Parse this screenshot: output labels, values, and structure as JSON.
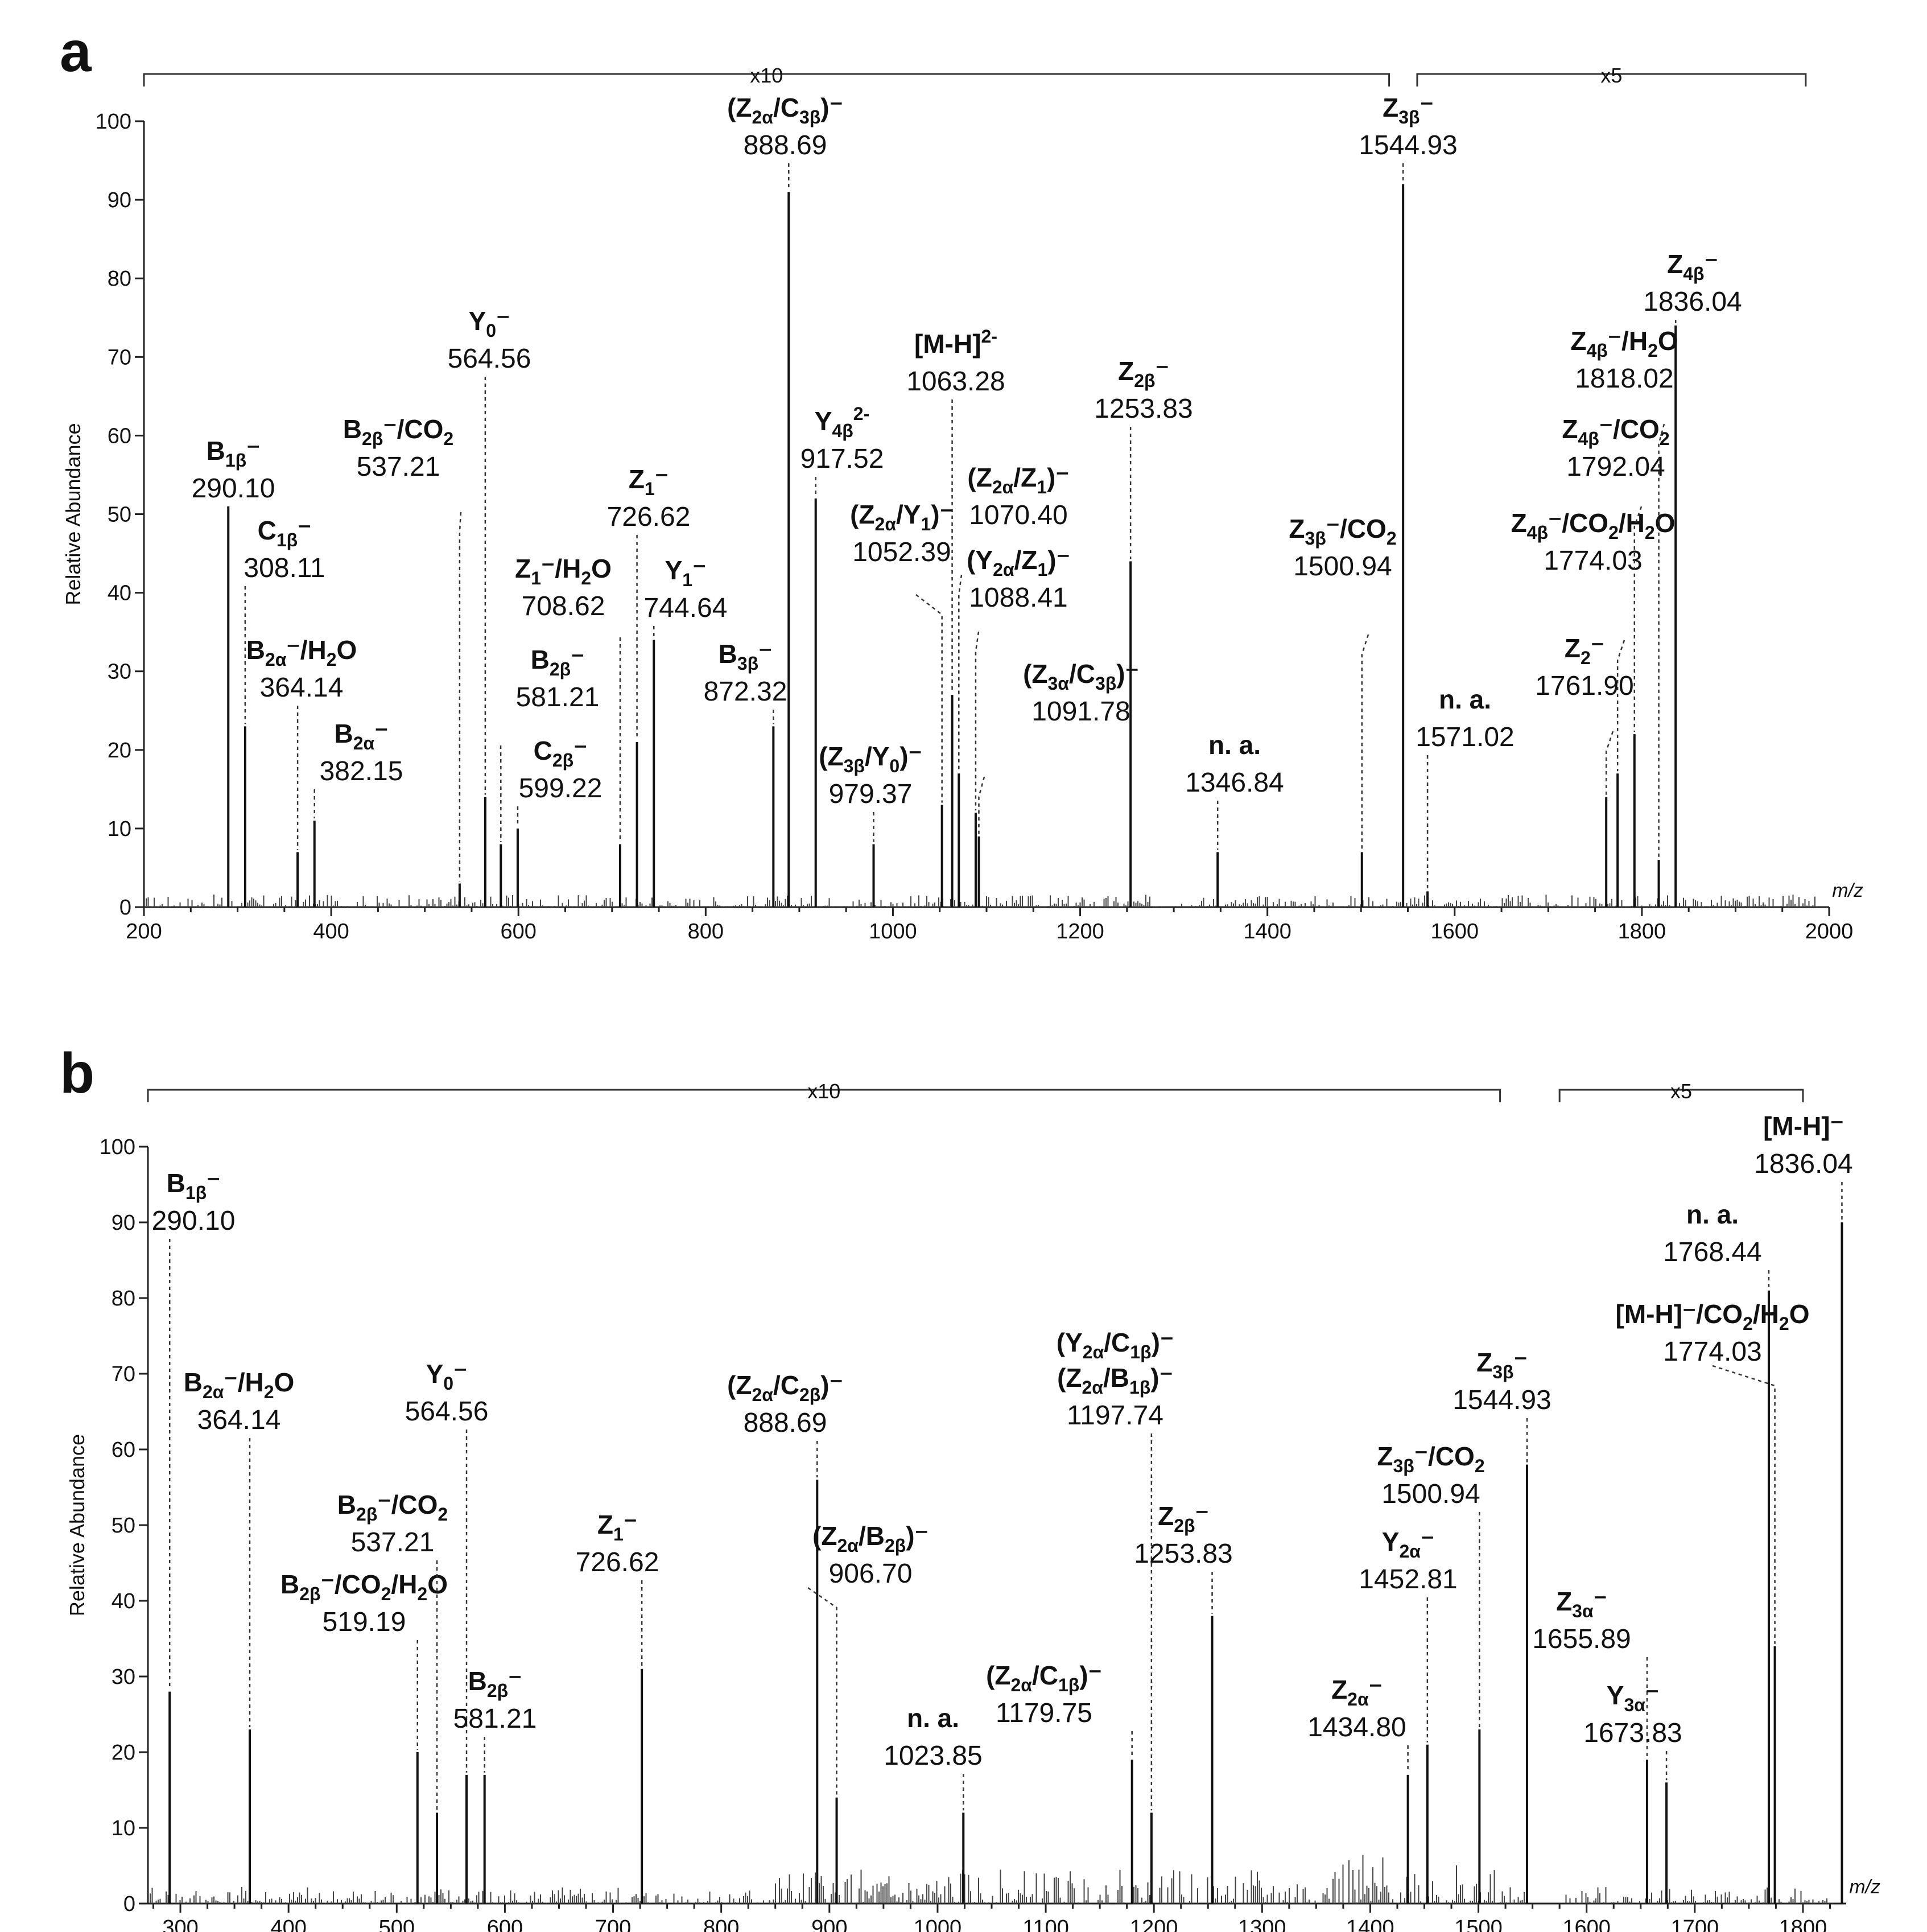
{
  "chart_data": [
    {
      "type": "bar",
      "panel": "a",
      "xlabel": "m/z",
      "ylabel": "Relative Abundance",
      "xlim": [
        200,
        2000
      ],
      "ylim": [
        0,
        100
      ],
      "xticks": [
        200,
        400,
        600,
        800,
        1000,
        1200,
        1400,
        1600,
        1800,
        2000
      ],
      "yticks": [
        0,
        10,
        20,
        30,
        40,
        50,
        60,
        70,
        80,
        90,
        100
      ],
      "zoom_regions": [
        {
          "label": "x10",
          "from": 200,
          "to": 1530
        },
        {
          "label": "x5",
          "from": 1560,
          "to": 1975
        }
      ],
      "peaks": [
        {
          "mz": 290.1,
          "value": 51,
          "name": "B1β⁻",
          "mzlabel": "290.10",
          "ion": [
            "B",
            "1β",
            "⁻"
          ]
        },
        {
          "mz": 308.11,
          "value": 23,
          "name": "C1β⁻",
          "mzlabel": "308.11",
          "ion": [
            "C",
            "1β",
            "⁻"
          ]
        },
        {
          "mz": 364.14,
          "value": 7,
          "name": "B2α⁻/H2O",
          "mzlabel": "364.14",
          "ion": [
            "B",
            "2α",
            "⁻/H",
            "2",
            "O"
          ]
        },
        {
          "mz": 382.15,
          "value": 11,
          "name": "B2α⁻",
          "mzlabel": "382.15",
          "ion": [
            "B",
            "2α",
            "⁻"
          ]
        },
        {
          "mz": 537.21,
          "value": 3,
          "name": "B2β⁻/CO2",
          "mzlabel": "537.21",
          "ion": [
            "B",
            "2β",
            "⁻/CO",
            "2"
          ]
        },
        {
          "mz": 564.56,
          "value": 14,
          "name": "Y0⁻",
          "mzlabel": "564.56",
          "ion": [
            "Y",
            "0",
            "⁻"
          ]
        },
        {
          "mz": 581.21,
          "value": 8,
          "name": "B2β⁻",
          "mzlabel": "581.21",
          "ion": [
            "B",
            "2β",
            "⁻"
          ]
        },
        {
          "mz": 599.22,
          "value": 10,
          "name": "C2β⁻",
          "mzlabel": "599.22",
          "ion": [
            "C",
            "2β",
            "⁻"
          ]
        },
        {
          "mz": 708.62,
          "value": 8,
          "name": "Z1⁻/H2O",
          "mzlabel": "708.62",
          "ion": [
            "Z",
            "1",
            "⁻/H",
            "2",
            "O"
          ]
        },
        {
          "mz": 726.62,
          "value": 21,
          "name": "Z1⁻",
          "mzlabel": "726.62",
          "ion": [
            "Z",
            "1",
            "⁻"
          ]
        },
        {
          "mz": 744.64,
          "value": 34,
          "name": "Y1⁻",
          "mzlabel": "744.64",
          "ion": [
            "Y",
            "1",
            "⁻"
          ]
        },
        {
          "mz": 872.32,
          "value": 23,
          "name": "B3β⁻",
          "mzlabel": "872.32",
          "ion": [
            "B",
            "3β",
            "⁻"
          ]
        },
        {
          "mz": 888.69,
          "value": 91,
          "name": "(Z2α/C3β)⁻",
          "mzlabel": "888.69",
          "ion": [
            "(Z",
            "2α",
            "/C",
            "3β",
            ")⁻"
          ]
        },
        {
          "mz": 917.52,
          "value": 52,
          "name": "Y4β2-",
          "mzlabel": "917.52",
          "ion": [
            "Y",
            "4β",
            "2-"
          ]
        },
        {
          "mz": 979.37,
          "value": 8,
          "name": "(Z3β/Y0)⁻",
          "mzlabel": "979.37",
          "ion": [
            "(Z",
            "3β",
            "/Y",
            "0",
            ")⁻"
          ]
        },
        {
          "mz": 1052.39,
          "value": 13,
          "name": "(Z2α/Y1)⁻",
          "mzlabel": "1052.39",
          "ion": [
            "(Z",
            "2α",
            "/Y",
            "1",
            ")⁻"
          ]
        },
        {
          "mz": 1063.28,
          "value": 27,
          "name": "[M-H]2-",
          "mzlabel": "1063.28",
          "ion": [
            "[M-H]",
            "",
            "2-"
          ]
        },
        {
          "mz": 1070.4,
          "value": 17,
          "name": "(Z2α/Z1)⁻",
          "mzlabel": "1070.40",
          "ion": [
            "(Z",
            "2α",
            "/Z",
            "1",
            ")⁻"
          ]
        },
        {
          "mz": 1088.41,
          "value": 12,
          "name": "(Y2α/Z1)⁻",
          "mzlabel": "1088.41",
          "ion": [
            "(Y",
            "2α",
            "/Z",
            "1",
            ")⁻"
          ]
        },
        {
          "mz": 1091.78,
          "value": 9,
          "name": "(Z3α/C3β)⁻",
          "mzlabel": "1091.78",
          "ion": [
            "(Z",
            "3α",
            "/C",
            "3β",
            ")⁻"
          ]
        },
        {
          "mz": 1253.83,
          "value": 44,
          "name": "Z2β⁻",
          "mzlabel": "1253.83",
          "ion": [
            "Z",
            "2β",
            "⁻"
          ]
        },
        {
          "mz": 1346.84,
          "value": 7,
          "name": "n. a.",
          "mzlabel": "1346.84",
          "ion": [
            "n. a."
          ]
        },
        {
          "mz": 1500.94,
          "value": 7,
          "name": "Z3β⁻/CO2",
          "mzlabel": "1500.94",
          "ion": [
            "Z",
            "3β",
            "⁻/CO",
            "2"
          ]
        },
        {
          "mz": 1544.93,
          "value": 92,
          "name": "Z3β⁻",
          "mzlabel": "1544.93",
          "ion": [
            "Z",
            "3β",
            "⁻"
          ]
        },
        {
          "mz": 1571.02,
          "value": 2,
          "name": "n. a.",
          "mzlabel": "1571.02",
          "ion": [
            "n. a."
          ]
        },
        {
          "mz": 1761.9,
          "value": 14,
          "name": "Z2⁻",
          "mzlabel": "1761.90",
          "ion": [
            "Z",
            "2",
            "⁻"
          ]
        },
        {
          "mz": 1774.03,
          "value": 17,
          "name": "Z4β⁻/CO2/H2O",
          "mzlabel": "1774.03",
          "ion": [
            "Z",
            "4β",
            "⁻/CO",
            "2",
            "/H",
            "2",
            "O"
          ]
        },
        {
          "mz": 1792.04,
          "value": 22,
          "name": "Z4β⁻/CO2",
          "mzlabel": "1792.04",
          "ion": [
            "Z",
            "4β",
            "⁻/CO",
            "2"
          ]
        },
        {
          "mz": 1818.02,
          "value": 6,
          "name": "Z4β⁻/H2O",
          "mzlabel": "1818.02",
          "ion": [
            "Z",
            "4β",
            "⁻/H",
            "2",
            "O"
          ]
        },
        {
          "mz": 1836.04,
          "value": 74,
          "name": "Z4β⁻",
          "mzlabel": "1836.04",
          "ion": [
            "Z",
            "4β",
            "⁻"
          ]
        }
      ]
    },
    {
      "type": "bar",
      "panel": "b",
      "xlabel": "m/z",
      "ylabel": "Relative Abundance",
      "xlim": [
        270,
        1840
      ],
      "ylim": [
        0,
        100
      ],
      "xticks": [
        300,
        400,
        500,
        600,
        700,
        800,
        900,
        1000,
        1100,
        1200,
        1300,
        1400,
        1500,
        1600,
        1700,
        1800
      ],
      "yticks": [
        0,
        10,
        20,
        30,
        40,
        50,
        60,
        70,
        80,
        90,
        100
      ],
      "zoom_regions": [
        {
          "label": "x10",
          "from": 270,
          "to": 1520
        },
        {
          "label": "x5",
          "from": 1575,
          "to": 1800
        }
      ],
      "peaks": [
        {
          "mz": 290.1,
          "value": 28,
          "name": "B1β⁻",
          "mzlabel": "290.10",
          "ion": [
            "B",
            "1β",
            "⁻"
          ]
        },
        {
          "mz": 364.14,
          "value": 23,
          "name": "B2α⁻/H2O",
          "mzlabel": "364.14",
          "ion": [
            "B",
            "2α",
            "⁻/H",
            "2",
            "O"
          ]
        },
        {
          "mz": 519.19,
          "value": 20,
          "name": "B2β⁻/CO2/H2O",
          "mzlabel": "519.19",
          "ion": [
            "B",
            "2β",
            "⁻/CO",
            "2",
            "/H",
            "2",
            "O"
          ]
        },
        {
          "mz": 537.21,
          "value": 12,
          "name": "B2β⁻/CO2",
          "mzlabel": "537.21",
          "ion": [
            "B",
            "2β",
            "⁻/CO",
            "2"
          ]
        },
        {
          "mz": 564.56,
          "value": 17,
          "name": "Y0⁻",
          "mzlabel": "564.56",
          "ion": [
            "Y",
            "0",
            "⁻"
          ]
        },
        {
          "mz": 581.21,
          "value": 17,
          "name": "B2β⁻",
          "mzlabel": "581.21",
          "ion": [
            "B",
            "2β",
            "⁻"
          ]
        },
        {
          "mz": 726.62,
          "value": 31,
          "name": "Z1⁻",
          "mzlabel": "726.62",
          "ion": [
            "Z",
            "1",
            "⁻"
          ]
        },
        {
          "mz": 888.69,
          "value": 56,
          "name": "(Z2α/C2β)⁻",
          "mzlabel": "888.69",
          "ion": [
            "(Z",
            "2α",
            "/C",
            "2β",
            ")⁻"
          ]
        },
        {
          "mz": 906.7,
          "value": 14,
          "name": "(Z2α/B2β)⁻",
          "mzlabel": "906.70",
          "ion": [
            "(Z",
            "2α",
            "/B",
            "2β",
            ")⁻"
          ]
        },
        {
          "mz": 1023.85,
          "value": 12,
          "name": "n. a.",
          "mzlabel": "1023.85",
          "ion": [
            "n. a."
          ]
        },
        {
          "mz": 1179.75,
          "value": 19,
          "name": "(Z2α/C1β)⁻",
          "mzlabel": "1179.75",
          "ion": [
            "(Z",
            "2α",
            "/C",
            "1β",
            ")⁻"
          ]
        },
        {
          "mz": 1197.74,
          "value": 12,
          "name": "(Y2α/C1β)⁻ (Z2α/B1β)⁻",
          "mzlabel": "1197.74",
          "ion": [
            "(Z",
            "2α",
            "/B",
            "1β",
            ")⁻"
          ],
          "ion2": [
            "(Y",
            "2α",
            "/C",
            "1β",
            ")⁻"
          ]
        },
        {
          "mz": 1253.83,
          "value": 38,
          "name": "Z2β⁻",
          "mzlabel": "1253.83",
          "ion": [
            "Z",
            "2β",
            "⁻"
          ]
        },
        {
          "mz": 1434.8,
          "value": 17,
          "name": "Z2α⁻",
          "mzlabel": "1434.80",
          "ion": [
            "Z",
            "2α",
            "⁻"
          ]
        },
        {
          "mz": 1452.81,
          "value": 21,
          "name": "Y2α⁻",
          "mzlabel": "1452.81",
          "ion": [
            "Y",
            "2α",
            "⁻"
          ]
        },
        {
          "mz": 1500.94,
          "value": 23,
          "name": "Z3β⁻/CO2",
          "mzlabel": "1500.94",
          "ion": [
            "Z",
            "3β",
            "⁻/CO",
            "2"
          ]
        },
        {
          "mz": 1544.93,
          "value": 58,
          "name": "Z3β⁻",
          "mzlabel": "1544.93",
          "ion": [
            "Z",
            "3β",
            "⁻"
          ]
        },
        {
          "mz": 1655.89,
          "value": 19,
          "name": "Z3α⁻",
          "mzlabel": "1655.89",
          "ion": [
            "Z",
            "3α",
            "⁻"
          ]
        },
        {
          "mz": 1673.83,
          "value": 16,
          "name": "Y3α⁻",
          "mzlabel": "1673.83",
          "ion": [
            "Y",
            "3α",
            "⁻"
          ]
        },
        {
          "mz": 1768.44,
          "value": 81,
          "name": "n. a.",
          "mzlabel": "1768.44",
          "ion": [
            "n. a."
          ]
        },
        {
          "mz": 1774.03,
          "value": 34,
          "name": "[M-H]⁻/CO2/H2O",
          "mzlabel": "1774.03",
          "ion": [
            "[M-H]⁻/CO",
            "2",
            "/H",
            "2",
            "O"
          ]
        },
        {
          "mz": 1836.04,
          "value": 90,
          "name": "[M-H]⁻",
          "mzlabel": "1836.04",
          "ion": [
            "[M-H]⁻"
          ]
        }
      ]
    }
  ]
}
